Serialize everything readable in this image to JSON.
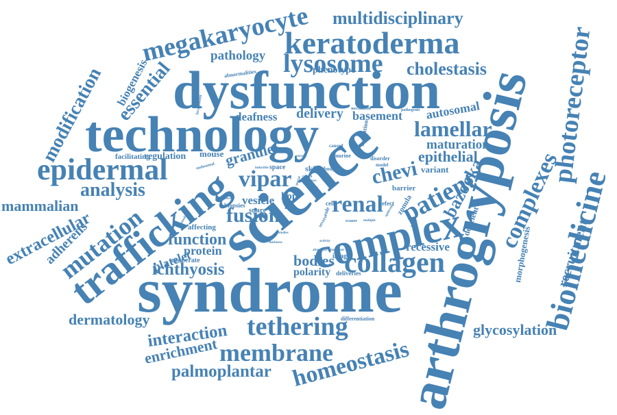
{
  "colors": {
    "word": "#4682b4",
    "background": "#ffffff"
  },
  "words": [
    "syndrome",
    "science",
    "arthrogryposis",
    "dysfunction",
    "technology",
    "complex",
    "trafficking",
    "keratoderma",
    "megakaryocyte",
    "epidermal",
    "collagen",
    "biomedicine",
    "photoreceptor",
    "complexes",
    "membrane",
    "homeostasis",
    "lysosome",
    "lamellar",
    "tethering",
    "multidisciplinary",
    "mutation",
    "cholestasis",
    "vipar",
    "analysis",
    "palmoplantar",
    "glycosylation",
    "modification",
    "extracellular",
    "mammalian",
    "dermatology",
    "interaction",
    "enrichment",
    "patient",
    "renal",
    "bazooka",
    "fusion",
    "ichthyosis",
    "function",
    "chevi",
    "essential",
    "recruitment",
    "adherens",
    "pathology",
    "bodies",
    "maturation",
    "epithelial",
    "granule",
    "biogenesis",
    "delivery",
    "basement",
    "deafness",
    "autosomal",
    "platelet",
    "protein",
    "vesicle",
    "recessive",
    "phenotype",
    "polarity",
    "regulation",
    "mouse",
    "morphogenesis",
    "facilitating",
    "variant",
    "deficient",
    "cooperate",
    "affecting",
    "snare",
    "hop",
    "life",
    "biopsies",
    "abnormalities",
    "differentiation",
    "image",
    "deliveries",
    "zonula",
    "space",
    "skin",
    "body",
    "barrier",
    "cell",
    "defect",
    "disorder",
    "model",
    "murine",
    "formation",
    "caused",
    "mechanism",
    "pathogenic",
    "localization",
    "endosomal",
    "inducible",
    "thickness",
    "studies",
    "activity",
    "abnormal",
    "knockout",
    "severe",
    "scanoe",
    "multiple",
    "epidermis",
    "structures",
    "cargo",
    "special",
    "cause",
    "role",
    "homologue",
    "defective",
    "enzyme"
  ]
}
